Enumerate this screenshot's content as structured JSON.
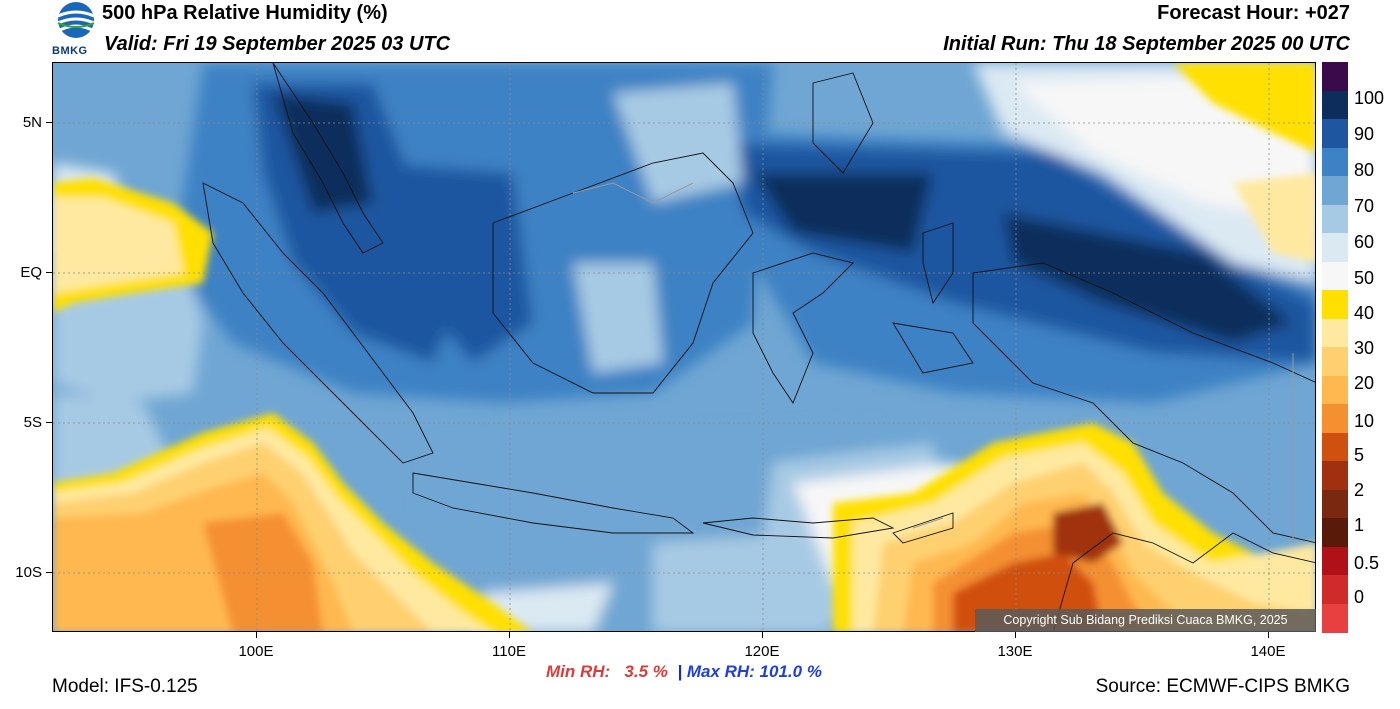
{
  "header": {
    "title": "500 hPa Relative Humidity (%)",
    "valid": "Valid: Fri 19 September 2025 03 UTC",
    "forecast_hour": "Forecast Hour: +027",
    "initial_run": "Initial Run: Thu 18 September 2025 00 UTC",
    "logo_text": "BMKG"
  },
  "map": {
    "lat_labels": [
      "5N",
      "EQ",
      "5S",
      "10S"
    ],
    "lon_labels": [
      "100E",
      "110E",
      "120E",
      "130E",
      "140E"
    ],
    "copyright": "Copyright Sub Bidang Prediksi Cuaca BMKG, 2025"
  },
  "colorbar": {
    "labels": [
      "100",
      "90",
      "80",
      "70",
      "60",
      "50",
      "40",
      "30",
      "20",
      "10",
      "5",
      "2",
      "1",
      "0.5",
      "0"
    ],
    "colors": [
      "#3b0a4a",
      "#0d2e5c",
      "#1f56a0",
      "#3c82c4",
      "#6fa6d3",
      "#a7cae4",
      "#dbe9f3",
      "#f7f7f7",
      "#ffe000",
      "#ffe9a0",
      "#ffd070",
      "#ffb850",
      "#f49030",
      "#d05010",
      "#a03010",
      "#7a2810",
      "#5a1a0a",
      "#b01018",
      "#d02a2a",
      "#e84040"
    ]
  },
  "stats": {
    "min_label": "Min RH:",
    "min_value": "3.5 %",
    "separator": "|",
    "max_label": "Max RH: 101.0 %"
  },
  "footer": {
    "model": "Model: IFS-0.125",
    "source": "Source: ECMWF-CIPS BMKG"
  }
}
